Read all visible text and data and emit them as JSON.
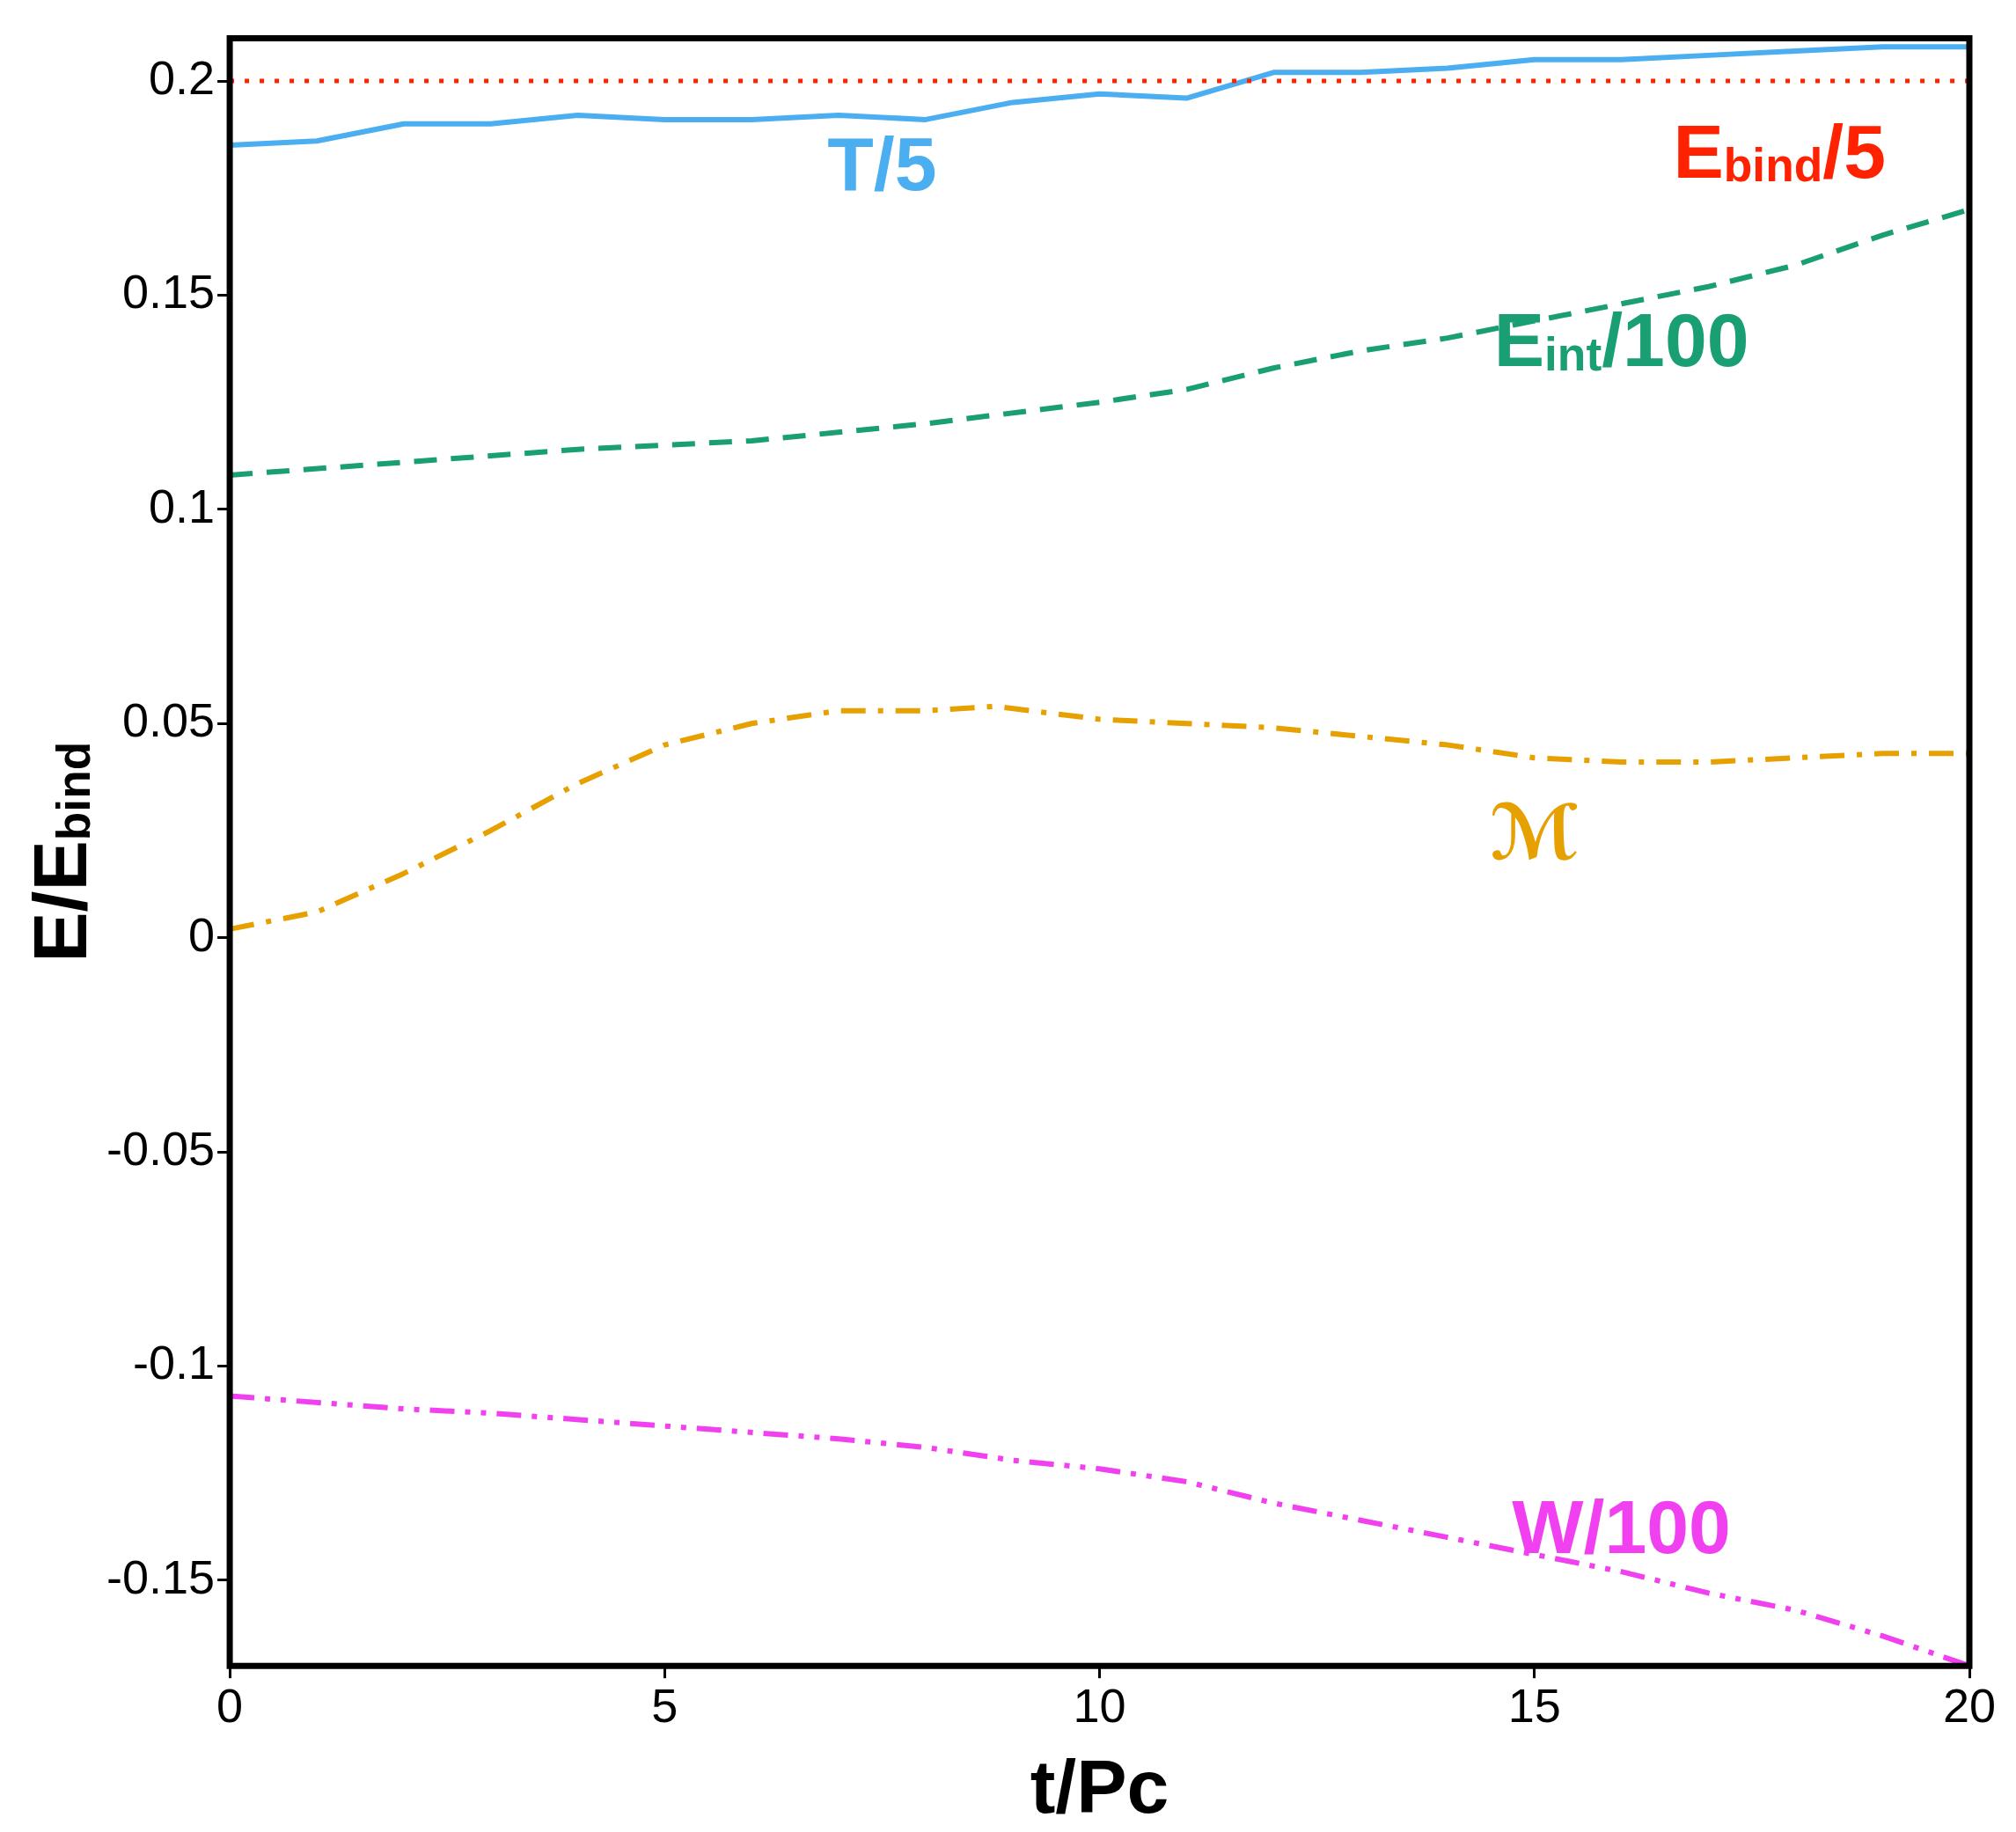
{
  "chart_data": {
    "type": "line",
    "xlabel": "t/Pc",
    "ylabel": "E/E$_{bind}$",
    "xlim": [
      0,
      20
    ],
    "xticks": [
      0,
      5,
      10,
      15,
      20
    ],
    "ylim": [
      -0.17,
      0.21
    ],
    "yticks": [
      -0.15,
      -0.1,
      -0.05,
      0,
      0.05,
      0.1,
      0.15,
      0.2
    ],
    "grid": false,
    "legend": false,
    "marker": "none",
    "series": [
      {
        "name": "T/5",
        "color": "#4aaef0",
        "line_style": "solid",
        "x": [
          0,
          1,
          2,
          3,
          4,
          5,
          6,
          7,
          8,
          9,
          10,
          11,
          12,
          13,
          14,
          15,
          16,
          17,
          18,
          19,
          20
        ],
        "values": [
          0.185,
          0.186,
          0.19,
          0.19,
          0.192,
          0.191,
          0.191,
          0.192,
          0.191,
          0.195,
          0.197,
          0.196,
          0.202,
          0.202,
          0.203,
          0.205,
          0.205,
          0.206,
          0.207,
          0.208,
          0.208
        ]
      },
      {
        "name": "E$_{int}$/100",
        "color": "#1a9e73",
        "line_style": "dashed",
        "x": [
          0,
          2,
          4,
          6,
          8,
          10,
          11,
          12,
          13,
          14,
          15,
          16,
          17,
          18,
          19,
          20
        ],
        "values": [
          0.108,
          0.111,
          0.114,
          0.116,
          0.12,
          0.125,
          0.128,
          0.133,
          0.137,
          0.14,
          0.144,
          0.148,
          0.152,
          0.157,
          0.164,
          0.17
        ]
      },
      {
        "name": "ℳ",
        "color": "#e6a000",
        "line_style": "dashdot",
        "x": [
          0,
          1,
          2,
          3,
          4,
          5,
          6,
          7,
          8,
          8.8,
          10,
          11,
          12,
          13,
          14,
          15,
          16,
          17,
          18,
          19,
          20
        ],
        "values": [
          0.002,
          0.006,
          0.015,
          0.025,
          0.036,
          0.045,
          0.05,
          0.053,
          0.053,
          0.054,
          0.051,
          0.05,
          0.049,
          0.047,
          0.045,
          0.042,
          0.041,
          0.041,
          0.042,
          0.043,
          0.043
        ]
      },
      {
        "name": "W/100",
        "color": "#f040f0",
        "line_style": "dashdotdot",
        "x": [
          0,
          2,
          3,
          5,
          7,
          8,
          9,
          10,
          11,
          12,
          13,
          14,
          15,
          16,
          17,
          18,
          19,
          20
        ],
        "values": [
          -0.107,
          -0.11,
          -0.111,
          -0.114,
          -0.117,
          -0.119,
          -0.122,
          -0.124,
          -0.127,
          -0.132,
          -0.136,
          -0.14,
          -0.144,
          -0.148,
          -0.153,
          -0.157,
          -0.163,
          -0.17
        ]
      }
    ],
    "ref_lines": [
      {
        "axis": "y",
        "value": 0.2,
        "label": "E$_{bind}$/5",
        "color": "#ff2200",
        "line_style": "dotted"
      }
    ]
  }
}
